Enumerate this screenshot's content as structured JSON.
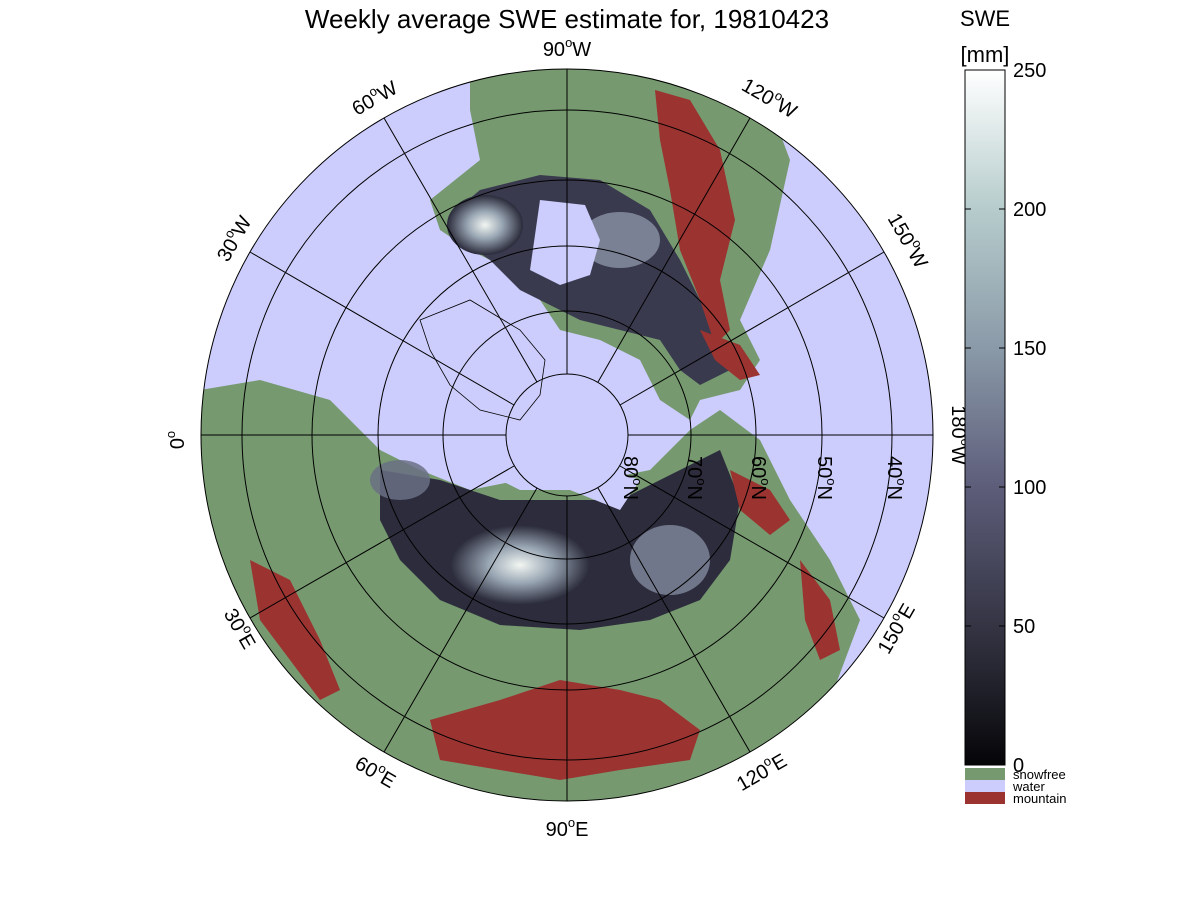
{
  "title": "Weekly average SWE estimate for, 19810423",
  "map": {
    "projection": "north-polar-stereographic",
    "longitude_labels": [
      {
        "id": "lon-90w",
        "deg": "90",
        "dir": "W"
      },
      {
        "id": "lon-120w",
        "deg": "120",
        "dir": "W"
      },
      {
        "id": "lon-60w",
        "deg": "60",
        "dir": "W"
      },
      {
        "id": "lon-150w",
        "deg": "150",
        "dir": "W"
      },
      {
        "id": "lon-30w",
        "deg": "30",
        "dir": "W"
      },
      {
        "id": "lon-180w",
        "deg": "180",
        "dir": "W"
      },
      {
        "id": "lon-0",
        "deg": "0",
        "dir": ""
      },
      {
        "id": "lon-150e",
        "deg": "150",
        "dir": "E"
      },
      {
        "id": "lon-30e",
        "deg": "30",
        "dir": "E"
      },
      {
        "id": "lon-120e",
        "deg": "120",
        "dir": "E"
      },
      {
        "id": "lon-60e",
        "deg": "60",
        "dir": "E"
      },
      {
        "id": "lon-90e",
        "deg": "90",
        "dir": "E"
      }
    ],
    "latitude_labels": [
      {
        "id": "lat-80n",
        "deg": "80",
        "dir": "N"
      },
      {
        "id": "lat-70n",
        "deg": "70",
        "dir": "N"
      },
      {
        "id": "lat-60n",
        "deg": "60",
        "dir": "N"
      },
      {
        "id": "lat-50n",
        "deg": "50",
        "dir": "N"
      },
      {
        "id": "lat-40n",
        "deg": "40",
        "dir": "N"
      }
    ]
  },
  "colorbar": {
    "title_line1": "SWE",
    "title_line2": "[mm]",
    "min": 0,
    "max": 250,
    "ticks": [
      "0",
      "50",
      "100",
      "150",
      "200",
      "250"
    ],
    "categories": [
      {
        "label": "snowfree",
        "color": "#76996f"
      },
      {
        "label": "water",
        "color": "#cccdfd"
      },
      {
        "label": "mountain",
        "color": "#9b3330"
      }
    ]
  },
  "colors": {
    "water": "#cccdfd",
    "snowfree": "#76996f",
    "mountain": "#9b3330",
    "swe_low": "#0a0a10",
    "swe_mid": "#5a5a78",
    "swe_high": "#ffffff"
  }
}
